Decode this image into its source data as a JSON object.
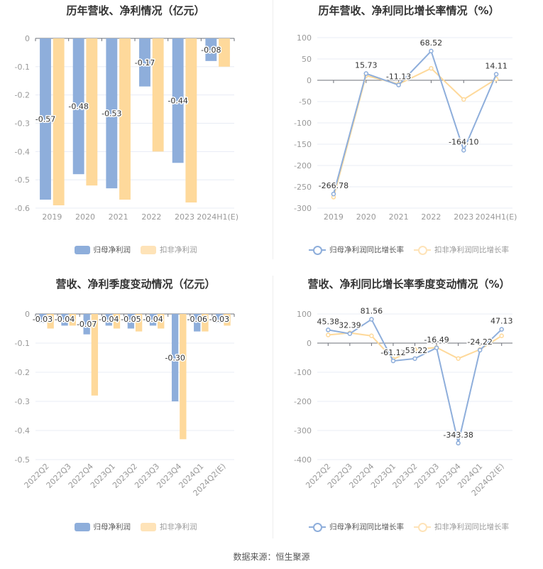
{
  "colors": {
    "blue": "#8eaedb",
    "orange": "#fed99b",
    "grid": "#e8ecf4",
    "axis": "#6e7079",
    "tick": "#999999",
    "label": "#333333"
  },
  "source": "数据来源：恒生聚源",
  "chart_data": [
    {
      "id": "annual-profit",
      "type": "bar",
      "title": "历年营收、净利情况（亿元）",
      "categories": [
        "2019",
        "2020",
        "2021",
        "2022",
        "2023",
        "2024H1(E)"
      ],
      "series": [
        {
          "name": "归母净利润",
          "values": [
            -0.57,
            -0.48,
            -0.53,
            -0.17,
            -0.44,
            -0.08
          ],
          "labels": [
            "-0.57",
            "-0.48",
            "-0.53",
            "-0.17",
            "-0.44",
            "-0.08"
          ]
        },
        {
          "name": "扣非净利润",
          "values": [
            -0.59,
            -0.52,
            -0.57,
            -0.4,
            -0.58,
            -0.1
          ]
        }
      ],
      "yticks": [
        "0",
        "-0.1",
        "-0.2",
        "-0.3",
        "-0.4",
        "-0.5",
        "-0.6"
      ],
      "ylim": [
        -0.6,
        0
      ],
      "grid": true,
      "legend_position": "bottom"
    },
    {
      "id": "annual-growth",
      "type": "line",
      "title": "历年营收、净利同比增长率情况（%）",
      "categories": [
        "2019",
        "2020",
        "2021",
        "2022",
        "2023",
        "2024H1(E)"
      ],
      "series": [
        {
          "name": "归母净利润同比增长率",
          "values": [
            -266.78,
            15.73,
            -11.13,
            68.52,
            -164.1,
            14.11
          ],
          "labels": [
            "-266.78",
            "15.73",
            "-11.13",
            "68.52",
            "-164.10",
            "14.11"
          ]
        },
        {
          "name": "扣非净利润同比增长率",
          "values": [
            -274,
            11,
            -9,
            28,
            -45,
            3
          ]
        }
      ],
      "yticks": [
        "100",
        "50",
        "0",
        "-50",
        "-100",
        "-150",
        "-200",
        "-250",
        "-300"
      ],
      "ylim": [
        -300,
        100
      ],
      "grid": true,
      "legend_position": "bottom"
    },
    {
      "id": "quarterly-profit",
      "type": "bar",
      "title": "营收、净利季度变动情况（亿元）",
      "categories": [
        "2022Q2",
        "2022Q3",
        "2022Q4",
        "2023Q1",
        "2023Q2",
        "2023Q3",
        "2023Q4",
        "2024Q1",
        "2024Q2(E)"
      ],
      "series": [
        {
          "name": "归母净利润",
          "values": [
            -0.03,
            -0.04,
            -0.07,
            -0.04,
            -0.05,
            -0.04,
            -0.3,
            -0.06,
            -0.03
          ],
          "labels": [
            "-0.03",
            "-0.04",
            "-0.07",
            "-0.04",
            "-0.05",
            "-0.04",
            "-0.30",
            "-0.06",
            "-0.03"
          ]
        },
        {
          "name": "扣非净利润",
          "values": [
            -0.05,
            -0.04,
            -0.28,
            -0.05,
            -0.06,
            -0.05,
            -0.43,
            -0.06,
            -0.04
          ]
        }
      ],
      "yticks": [
        "0",
        "-0.1",
        "-0.2",
        "-0.3",
        "-0.4",
        "-0.5"
      ],
      "ylim": [
        -0.5,
        0
      ],
      "grid": true,
      "legend_position": "bottom"
    },
    {
      "id": "quarterly-growth",
      "type": "line",
      "title": "营收、净利同比增长率季度变动情况（%）",
      "categories": [
        "2022Q2",
        "2022Q3",
        "2022Q4",
        "2023Q1",
        "2023Q2",
        "2023Q3",
        "2023Q4",
        "2024Q1",
        "2024Q2(E)"
      ],
      "series": [
        {
          "name": "归母净利润同比增长率",
          "values": [
            45.38,
            32.39,
            81.56,
            -61.12,
            -53.22,
            -16.49,
            -343.38,
            -24.22,
            47.13
          ],
          "labels": [
            "45.38",
            "32.39",
            "81.56",
            "-61.12",
            "-53.22",
            "-16.49",
            "-343.38",
            "-24.22",
            "47.13"
          ]
        },
        {
          "name": "扣非净利润同比增长率",
          "values": [
            28,
            35,
            25,
            -55,
            -22,
            -15,
            -53,
            -22,
            25
          ]
        }
      ],
      "yticks": [
        "100",
        "0",
        "-100",
        "-200",
        "-300",
        "-400"
      ],
      "ylim": [
        -400,
        100
      ],
      "grid": true,
      "legend_position": "bottom"
    }
  ]
}
